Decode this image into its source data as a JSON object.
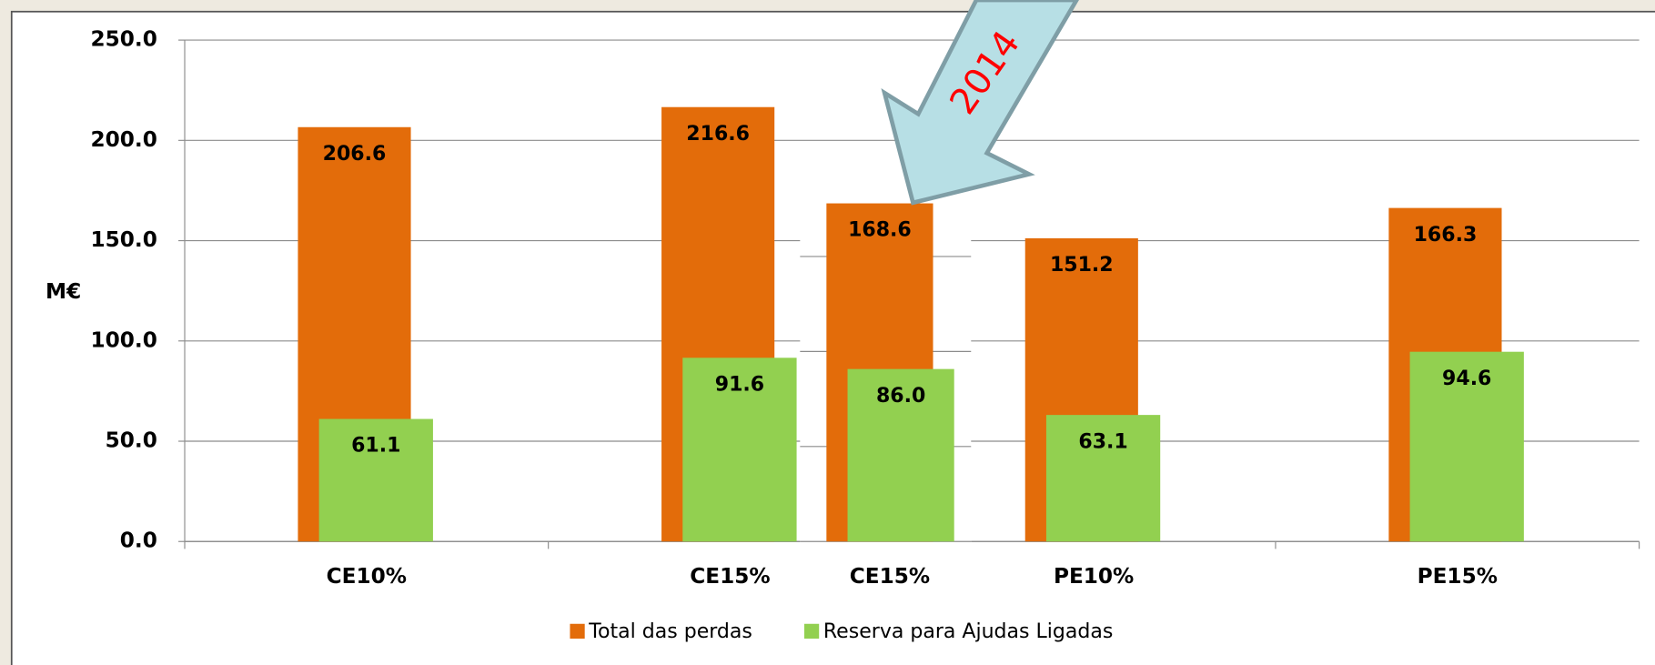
{
  "chart_data": [
    {
      "type": "bar",
      "y_label": "M€",
      "categories": [
        "CE10%",
        "CE15%",
        "PE10%",
        "PE15%"
      ],
      "series": [
        {
          "name": "Total das perdas",
          "color": "#e36c0a",
          "values": [
            206.6,
            216.6,
            151.2,
            166.3
          ]
        },
        {
          "name": "Reserva para Ajudas Ligadas",
          "color": "#92d050",
          "values": [
            61.1,
            91.6,
            63.1,
            94.6
          ]
        }
      ],
      "ylim": [
        0,
        250
      ],
      "yticks": [
        {
          "value": 0,
          "label": "0.0"
        },
        {
          "value": 50,
          "label": "50.0"
        },
        {
          "value": 100,
          "label": "100.0"
        },
        {
          "value": 150,
          "label": "150.0"
        },
        {
          "value": 200,
          "label": "200.0"
        },
        {
          "value": 250,
          "label": "250.0"
        }
      ],
      "grid": true,
      "legend": "bottom"
    },
    {
      "type": "bar",
      "annotation": "2014",
      "categories": [
        "CE15%"
      ],
      "series": [
        {
          "color": "#e36c0a",
          "values": [
            168.6
          ]
        },
        {
          "color": "#92d050",
          "values": [
            86.0
          ],
          "value_labels": [
            "86.0"
          ]
        }
      ]
    }
  ]
}
